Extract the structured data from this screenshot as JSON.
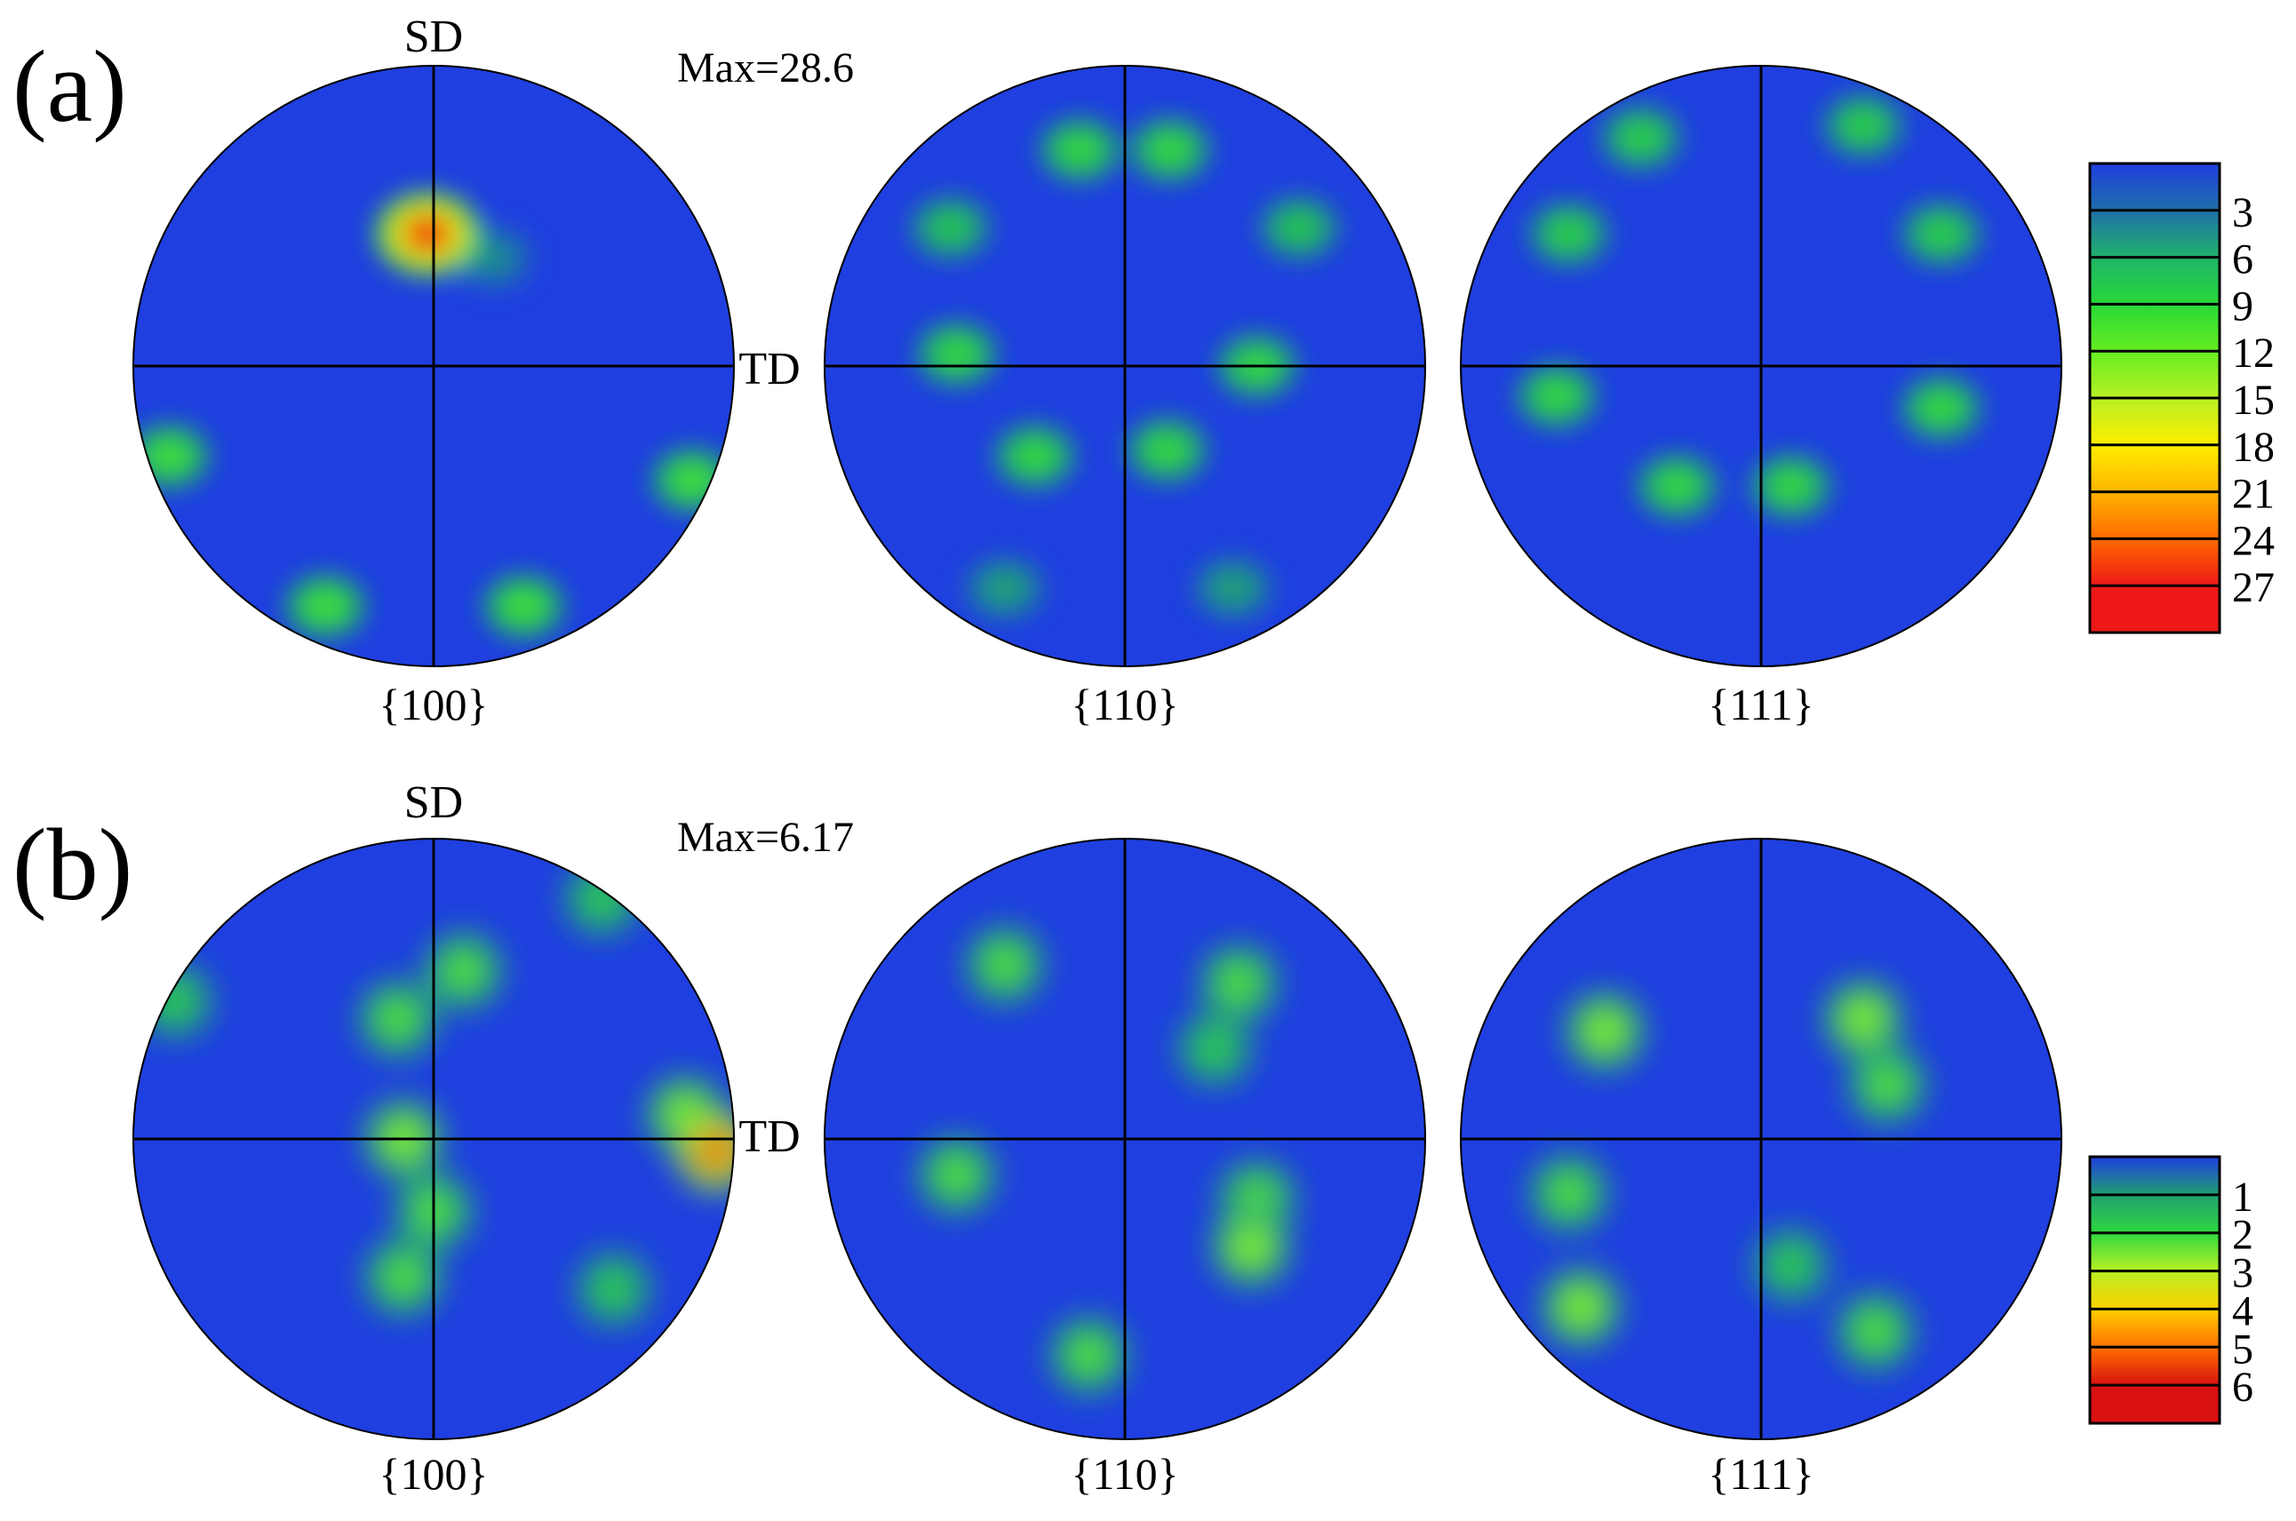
{
  "figure": {
    "panels": [
      {
        "id": "a",
        "panel_label": "(a)",
        "max_label": "Max=28.6",
        "sd_label": "SD",
        "td_label": "TD",
        "pole_figures": [
          "{100}",
          "{110}",
          "{111}"
        ],
        "legend": {
          "tick_labels": [
            "3",
            "6",
            "9",
            "12",
            "15",
            "18",
            "21",
            "24",
            "27"
          ],
          "colors": [
            "#1f3fe0",
            "#1f6fa8",
            "#20b46a",
            "#28d838",
            "#66ee22",
            "#b8f024",
            "#ffee00",
            "#ffb400",
            "#ff6a00",
            "#ee1818"
          ]
        }
      },
      {
        "id": "b",
        "panel_label": "(b)",
        "max_label": "Max=6.17",
        "sd_label": "SD",
        "td_label": "TD",
        "pole_figures": [
          "{100}",
          "{110}",
          "{111}"
        ],
        "legend": {
          "tick_labels": [
            "1",
            "2",
            "3",
            "4",
            "5",
            "6"
          ],
          "colors": [
            "#1f3fe0",
            "#20a070",
            "#30d840",
            "#b8f024",
            "#ffd000",
            "#ff7000",
            "#d81010"
          ]
        }
      }
    ]
  },
  "chart_data": [
    {
      "type": "heatmap",
      "panel": "(a)",
      "annotation": "Max=28.6",
      "axis_labels": {
        "top": "SD",
        "right": "TD"
      },
      "subplots": [
        "{100}",
        "{110}",
        "{111}"
      ],
      "colorbar_ticks": [
        3,
        6,
        9,
        12,
        15,
        18,
        21,
        24,
        27
      ],
      "max_intensity": 28.6,
      "intensity_peaks": [
        {
          "pole_figure": "{100}",
          "x": -0.02,
          "y": 0.44,
          "value": 28.6
        },
        {
          "pole_figure": "{100}",
          "x": 0.2,
          "y": 0.36,
          "value": 4
        },
        {
          "pole_figure": "{100}",
          "x": -0.88,
          "y": -0.3,
          "value": 10
        },
        {
          "pole_figure": "{100}",
          "x": 0.86,
          "y": -0.38,
          "value": 10
        },
        {
          "pole_figure": "{100}",
          "x": -0.36,
          "y": -0.8,
          "value": 10
        },
        {
          "pole_figure": "{100}",
          "x": 0.3,
          "y": -0.8,
          "value": 10
        },
        {
          "pole_figure": "{110}",
          "x": -0.15,
          "y": 0.72,
          "value": 9
        },
        {
          "pole_figure": "{110}",
          "x": 0.15,
          "y": 0.72,
          "value": 9
        },
        {
          "pole_figure": "{110}",
          "x": -0.58,
          "y": 0.46,
          "value": 7
        },
        {
          "pole_figure": "{110}",
          "x": 0.58,
          "y": 0.46,
          "value": 7
        },
        {
          "pole_figure": "{110}",
          "x": -0.56,
          "y": 0.04,
          "value": 9
        },
        {
          "pole_figure": "{110}",
          "x": 0.44,
          "y": 0.0,
          "value": 9
        },
        {
          "pole_figure": "{110}",
          "x": -0.3,
          "y": -0.3,
          "value": 9
        },
        {
          "pole_figure": "{110}",
          "x": 0.14,
          "y": -0.28,
          "value": 9
        },
        {
          "pole_figure": "{110}",
          "x": -0.4,
          "y": -0.74,
          "value": 5
        },
        {
          "pole_figure": "{110}",
          "x": 0.36,
          "y": -0.74,
          "value": 5
        },
        {
          "pole_figure": "{111}",
          "x": -0.4,
          "y": 0.76,
          "value": 8
        },
        {
          "pole_figure": "{111}",
          "x": 0.34,
          "y": 0.8,
          "value": 8
        },
        {
          "pole_figure": "{111}",
          "x": -0.64,
          "y": 0.44,
          "value": 8
        },
        {
          "pole_figure": "{111}",
          "x": 0.6,
          "y": 0.44,
          "value": 8
        },
        {
          "pole_figure": "{111}",
          "x": -0.68,
          "y": -0.1,
          "value": 9
        },
        {
          "pole_figure": "{111}",
          "x": 0.6,
          "y": -0.14,
          "value": 9
        },
        {
          "pole_figure": "{111}",
          "x": -0.28,
          "y": -0.4,
          "value": 9
        },
        {
          "pole_figure": "{111}",
          "x": 0.1,
          "y": -0.4,
          "value": 9
        }
      ]
    },
    {
      "type": "heatmap",
      "panel": "(b)",
      "annotation": "Max=6.17",
      "axis_labels": {
        "top": "SD",
        "right": "TD"
      },
      "subplots": [
        "{100}",
        "{110}",
        "{111}"
      ],
      "colorbar_ticks": [
        1,
        2,
        3,
        4,
        5,
        6
      ],
      "max_intensity": 6.17,
      "intensity_peaks": [
        {
          "pole_figure": "{100}",
          "x": 0.94,
          "y": -0.04,
          "value": 6.17
        },
        {
          "pole_figure": "{100}",
          "x": 0.84,
          "y": 0.08,
          "value": 3.5
        },
        {
          "pole_figure": "{100}",
          "x": -0.12,
          "y": 0.4,
          "value": 3
        },
        {
          "pole_figure": "{100}",
          "x": 0.1,
          "y": 0.56,
          "value": 3
        },
        {
          "pole_figure": "{100}",
          "x": -0.1,
          "y": 0.0,
          "value": 3.5
        },
        {
          "pole_figure": "{100}",
          "x": 0.0,
          "y": -0.24,
          "value": 3
        },
        {
          "pole_figure": "{100}",
          "x": -0.1,
          "y": -0.46,
          "value": 3
        },
        {
          "pole_figure": "{100}",
          "x": -0.86,
          "y": 0.46,
          "value": 2.5
        },
        {
          "pole_figure": "{100}",
          "x": 0.56,
          "y": 0.8,
          "value": 2.5
        },
        {
          "pole_figure": "{100}",
          "x": 0.6,
          "y": -0.5,
          "value": 2.5
        },
        {
          "pole_figure": "{110}",
          "x": -0.4,
          "y": 0.58,
          "value": 3
        },
        {
          "pole_figure": "{110}",
          "x": 0.38,
          "y": 0.52,
          "value": 3
        },
        {
          "pole_figure": "{110}",
          "x": -0.56,
          "y": -0.12,
          "value": 3
        },
        {
          "pole_figure": "{110}",
          "x": 0.44,
          "y": -0.2,
          "value": 3
        },
        {
          "pole_figure": "{110}",
          "x": 0.42,
          "y": -0.36,
          "value": 3.5
        },
        {
          "pole_figure": "{110}",
          "x": -0.12,
          "y": -0.72,
          "value": 3
        },
        {
          "pole_figure": "{110}",
          "x": 0.3,
          "y": 0.3,
          "value": 2.5
        },
        {
          "pole_figure": "{111}",
          "x": -0.52,
          "y": 0.36,
          "value": 3.5
        },
        {
          "pole_figure": "{111}",
          "x": 0.34,
          "y": 0.4,
          "value": 3.5
        },
        {
          "pole_figure": "{111}",
          "x": 0.42,
          "y": 0.18,
          "value": 3
        },
        {
          "pole_figure": "{111}",
          "x": -0.64,
          "y": -0.18,
          "value": 3
        },
        {
          "pole_figure": "{111}",
          "x": -0.6,
          "y": -0.56,
          "value": 3.5
        },
        {
          "pole_figure": "{111}",
          "x": 0.38,
          "y": -0.64,
          "value": 3
        },
        {
          "pole_figure": "{111}",
          "x": 0.1,
          "y": -0.42,
          "value": 2.5
        }
      ]
    }
  ]
}
